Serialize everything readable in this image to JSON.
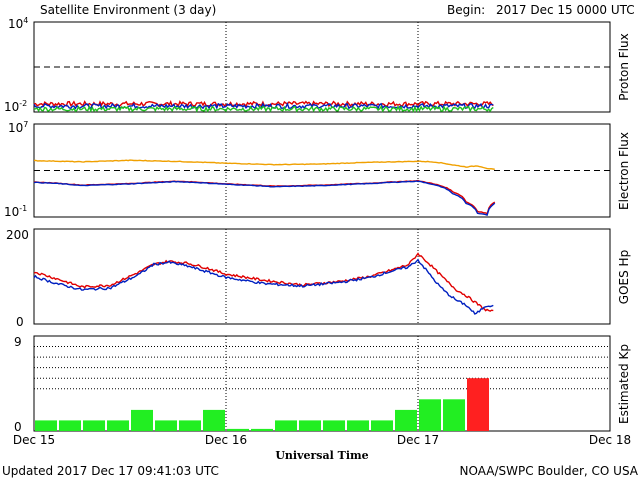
{
  "header": {
    "title": "Satellite Environment (3 day)",
    "begin_label": "Begin:",
    "begin_value": "2017 Dec 15 0000 UTC"
  },
  "footer": {
    "updated": "Updated 2017 Dec 17 09:41:03 UTC",
    "credit": "NOAA/SWPC Boulder, CO USA"
  },
  "chart_data": [
    {
      "type": "line",
      "ylabel": "Proton Flux",
      "scale": "log",
      "y_tick_labels": [
        "10^4",
        "10^-2"
      ],
      "ylim": [
        0.01,
        10000
      ],
      "threshold": 10,
      "x_range_days": [
        0,
        3
      ],
      "data_end_day": 2.4,
      "series": [
        {
          "color": "#e00000",
          "level": 0.035
        },
        {
          "color": "#0020c0",
          "level": 0.025
        },
        {
          "color": "#20c020",
          "level": 0.016
        }
      ]
    },
    {
      "type": "line",
      "ylabel": "Electron Flux",
      "scale": "log",
      "y_tick_labels": [
        "10^7",
        "10^-1"
      ],
      "ylim": [
        0.1,
        10000000
      ],
      "threshold": 1000,
      "x": [
        0,
        0.1,
        0.25,
        0.5,
        0.75,
        1.0,
        1.25,
        1.5,
        1.75,
        2.0,
        2.08,
        2.18,
        2.25,
        2.31,
        2.36,
        2.4
      ],
      "series": [
        {
          "color": "#f0a000",
          "values": [
            7000,
            6500,
            5500,
            7500,
            6000,
            4200,
            3200,
            3600,
            5000,
            6200,
            5500,
            3000,
            2000,
            2500,
            1500,
            1200
          ]
        },
        {
          "color": "#e00000",
          "values": [
            100,
            85,
            55,
            75,
            120,
            70,
            45,
            55,
            80,
            130,
            70,
            15,
            2,
            0.3,
            0.2,
            2
          ]
        },
        {
          "color": "#0020c0",
          "values": [
            95,
            80,
            50,
            70,
            110,
            65,
            40,
            50,
            75,
            120,
            60,
            10,
            1.5,
            0.2,
            0.15,
            1.5
          ]
        }
      ]
    },
    {
      "type": "line",
      "ylabel": "GOES Hp",
      "y_tick_labels": [
        "200",
        "0"
      ],
      "ylim": [
        0,
        200
      ],
      "x": [
        0,
        0.12,
        0.25,
        0.4,
        0.55,
        0.62,
        0.7,
        0.8,
        0.9,
        1.0,
        1.2,
        1.4,
        1.6,
        1.75,
        1.85,
        1.95,
        2.0,
        2.05,
        2.1,
        2.15,
        2.2,
        2.25,
        2.3,
        2.35,
        2.4
      ],
      "series": [
        {
          "color": "#e00000",
          "values": [
            110,
            95,
            78,
            82,
            110,
            125,
            132,
            128,
            118,
            105,
            92,
            82,
            90,
            100,
            112,
            125,
            148,
            130,
            110,
            90,
            72,
            60,
            45,
            30,
            25
          ]
        },
        {
          "color": "#0020c0",
          "values": [
            100,
            85,
            72,
            76,
            105,
            125,
            130,
            122,
            110,
            98,
            85,
            80,
            88,
            98,
            110,
            120,
            135,
            110,
            85,
            65,
            50,
            40,
            20,
            38,
            40
          ]
        }
      ]
    },
    {
      "type": "bar",
      "ylabel": "Estimated Kp",
      "y_tick_labels": [
        "9",
        "0"
      ],
      "ylim": [
        0,
        9
      ],
      "gridlines": [
        4,
        5,
        6,
        7,
        8
      ],
      "values": [
        1,
        1,
        1,
        1,
        2,
        1,
        1,
        2,
        0.2,
        0.2,
        1,
        1,
        1,
        1,
        1,
        2,
        3,
        3,
        5
      ],
      "colors": {
        "quiet": "#22ee22",
        "storm": "#ff2020"
      }
    }
  ],
  "x_axis": {
    "tick_labels": [
      "Dec 15",
      "Dec 16",
      "Dec 17",
      "Dec 18"
    ],
    "title": "Universal Time"
  }
}
